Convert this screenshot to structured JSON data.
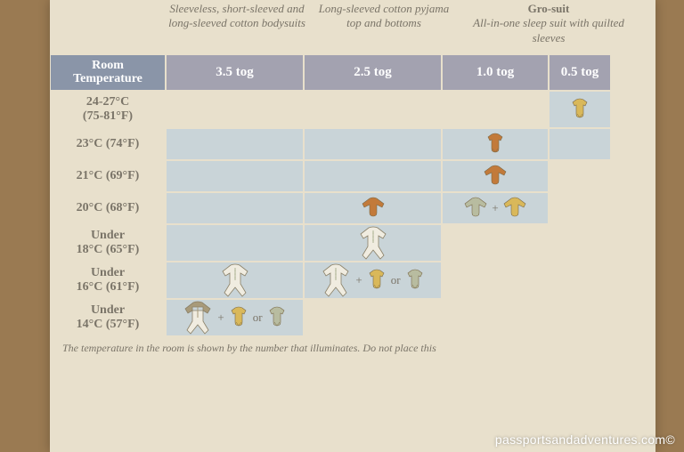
{
  "descriptions": {
    "col1": "Sleeveless, short-sleeved and long-sleeved cotton bodysuits",
    "col2": "Long-sleeved cotton pyjama top and bottoms",
    "col3_title": "Gro-suit",
    "col3": "All-in-one sleep suit with quilted sleeves"
  },
  "headers": {
    "temp_line1": "Room",
    "temp_line2": "Temperature",
    "c35": "3.5 tog",
    "c25": "2.5 tog",
    "c10": "1.0 tog",
    "c05": "0.5 tog"
  },
  "rows": [
    {
      "temp": "24-27°C",
      "temp2": "(75-81°F)"
    },
    {
      "temp": "23°C (74°F)",
      "temp2": ""
    },
    {
      "temp": "21°C (69°F)",
      "temp2": ""
    },
    {
      "temp": "20°C (68°F)",
      "temp2": ""
    },
    {
      "temp": "Under",
      "temp2": "18°C (65°F)"
    },
    {
      "temp": "Under",
      "temp2": "16°C (61°F)"
    },
    {
      "temp": "Under",
      "temp2": "14°C (57°F)"
    }
  ],
  "labels": {
    "plus": "+",
    "or": "or"
  },
  "footnote": "The temperature in the room is shown by the number that illuminates. Do not place this",
  "watermark": "passportsandadventures.com©",
  "icon_colors": {
    "short_yellow": "#d9b85a",
    "short_orange": "#c27a3a",
    "short_sage": "#b8bca0",
    "long_orange": "#c27a3a",
    "long_sage": "#b8bca0",
    "suit_body": "#f0ece0",
    "suit_trim": "#b8bca0",
    "gro_body": "#f0ece0",
    "gro_sleeve": "#a89a7a"
  }
}
